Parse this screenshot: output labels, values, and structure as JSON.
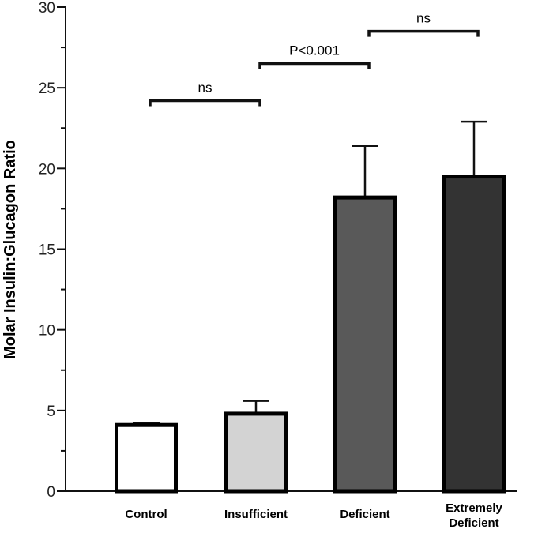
{
  "chart_data": {
    "type": "bar",
    "title": "",
    "xlabel": "",
    "ylabel": "Molar Insulin:Glucagon Ratio",
    "ylim": [
      0,
      30
    ],
    "yticks": [
      0,
      5,
      10,
      15,
      20,
      25,
      30
    ],
    "categories": [
      [
        "Control"
      ],
      [
        "Insufficient"
      ],
      [
        "Deficient"
      ],
      [
        "Extremely",
        "Deficient"
      ]
    ],
    "values": [
      4.1,
      4.8,
      18.2,
      19.5
    ],
    "errors": [
      0.1,
      0.8,
      3.2,
      3.4
    ],
    "bar_colors": [
      "#ffffff",
      "#d3d3d3",
      "#595959",
      "#333333"
    ],
    "comparisons": [
      {
        "from": 0,
        "to": 1,
        "y": 24.2,
        "label": "ns"
      },
      {
        "from": 1,
        "to": 2,
        "y": 26.5,
        "label": "P<0.001"
      },
      {
        "from": 2,
        "to": 3,
        "y": 28.5,
        "label": "ns"
      }
    ]
  }
}
